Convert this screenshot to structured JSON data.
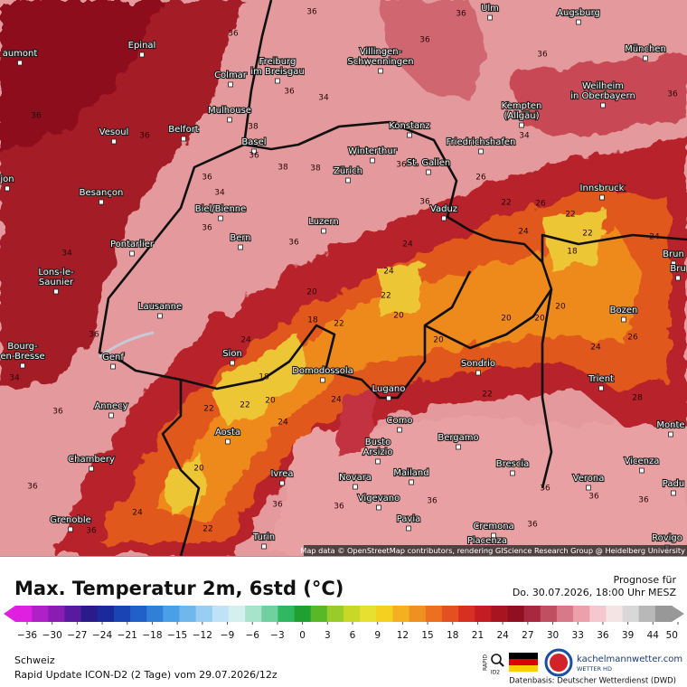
{
  "map": {
    "cities": [
      [
        "Ulm"
      ],
      [
        "Augsburg"
      ],
      [
        "Epinal"
      ],
      [
        "aumont"
      ],
      [
        "Colmar"
      ],
      [
        "Freiburg",
        "im Breisgau"
      ],
      [
        "Villingen-",
        "Schwenningen"
      ],
      [
        "München"
      ],
      [
        "Weilheim",
        "in Oberbayern"
      ],
      [
        "Kempten",
        "(Allgäu)"
      ],
      [
        "Mulhouse"
      ],
      [
        "Konstanz"
      ],
      [
        "Friedrichshafen"
      ],
      [
        "Vesoul"
      ],
      [
        "Belfort"
      ],
      [
        "Basel"
      ],
      [
        "Winterthur"
      ],
      [
        "St. Gallen"
      ],
      [
        "Zürich"
      ],
      [
        "jon"
      ],
      [
        "Besançon"
      ],
      [
        "Innsbruck"
      ],
      [
        "Biel/Bienne"
      ],
      [
        "Vaduz"
      ],
      [
        "Luzern"
      ],
      [
        "Pontarlier"
      ],
      [
        "Bern"
      ],
      [
        "Brun"
      ],
      [
        "Bru"
      ],
      [
        "Lons-le-",
        "Saunier"
      ],
      [
        "Lausanne"
      ],
      [
        "Bozen"
      ],
      [
        "Bourg-",
        "en-Bresse"
      ],
      [
        "Sion"
      ],
      [
        "Genf"
      ],
      [
        "Sondrio"
      ],
      [
        "Domodossola"
      ],
      [
        "Trient"
      ],
      [
        "Lugano"
      ],
      [
        "Annecy"
      ],
      [
        "Como"
      ],
      [
        "Monte"
      ],
      [
        "Aosta"
      ],
      [
        "Busto",
        "Arsizio"
      ],
      [
        "Bergamo"
      ],
      [
        "Chambery"
      ],
      [
        "Brescia"
      ],
      [
        "Vicenza"
      ],
      [
        "Ivrea"
      ],
      [
        "Novara"
      ],
      [
        "Mailand"
      ],
      [
        "Verona"
      ],
      [
        "Padu"
      ],
      [
        "Vigevano"
      ],
      [
        "Grenoble"
      ],
      [
        "Pavia"
      ],
      [
        "Cremona"
      ],
      [
        "Turin"
      ],
      [
        "Piacenza"
      ],
      [
        "Rovigo"
      ]
    ],
    "temperature_labels": [
      36,
      36,
      36,
      36,
      36,
      34,
      38,
      36,
      38,
      38,
      36,
      34,
      36,
      36,
      36,
      22,
      26,
      22,
      22,
      18,
      24,
      24,
      22,
      20,
      20,
      18,
      22,
      24,
      18,
      20,
      22,
      22,
      24,
      24,
      20,
      20,
      20,
      20,
      22,
      24,
      26,
      24,
      28,
      36,
      36,
      22,
      20,
      24,
      36,
      36,
      36,
      36,
      36,
      36,
      36,
      34,
      36,
      36,
      34,
      36,
      36,
      34,
      26,
      36,
      36,
      36,
      24
    ],
    "attribution": "Map data © OpenStreetMap contributors, rendering GIScience Research Group @ Heidelberg University"
  },
  "legend": {
    "title": "Max. Temperatur 2m, 6std (°C)",
    "forecast_label": "Prognose für",
    "forecast_time": "Do. 30.07.2026, 18:00 Uhr MESZ",
    "ticks": [
      "−36",
      "−30",
      "−27",
      "−24",
      "−21",
      "−18",
      "−15",
      "−12",
      "−9",
      "−6",
      "−3",
      "0",
      "3",
      "6",
      "9",
      "12",
      "15",
      "18",
      "21",
      "24",
      "27",
      "30",
      "33",
      "36",
      "39",
      "44",
      "50"
    ],
    "colors": [
      "#e020e0",
      "#b020c8",
      "#8a1cb4",
      "#5a1aa0",
      "#2a1a8c",
      "#1a2a9c",
      "#1a44b4",
      "#2060c8",
      "#3080d8",
      "#4aa0e4",
      "#70b8ec",
      "#98cef2",
      "#bfe2f6",
      "#d4f0ee",
      "#a8e4cc",
      "#70d0a0",
      "#30b860",
      "#20a030",
      "#58b828",
      "#98cc28",
      "#c8d828",
      "#e8e030",
      "#f4d020",
      "#f4b020",
      "#f09020",
      "#ec7020",
      "#e45020",
      "#d83020",
      "#c41c20",
      "#a81420",
      "#901020",
      "#a82840",
      "#c05060",
      "#d87888",
      "#eca0ac",
      "#f4c8cc",
      "#f4e4e4",
      "#d8d8d8",
      "#b8b8b8",
      "#989898"
    ]
  },
  "footer": {
    "region": "Schweiz",
    "model": "Rapid Update ICON-D2 (2 Tage) vom 29.07.2026/12z",
    "badge": [
      "RAPID",
      "ID2"
    ],
    "brand": "kachelmannwetter.com",
    "brand_sub": "WETTER HD",
    "source": "Datenbasis: Deutscher Wetterdienst (DWD)"
  }
}
